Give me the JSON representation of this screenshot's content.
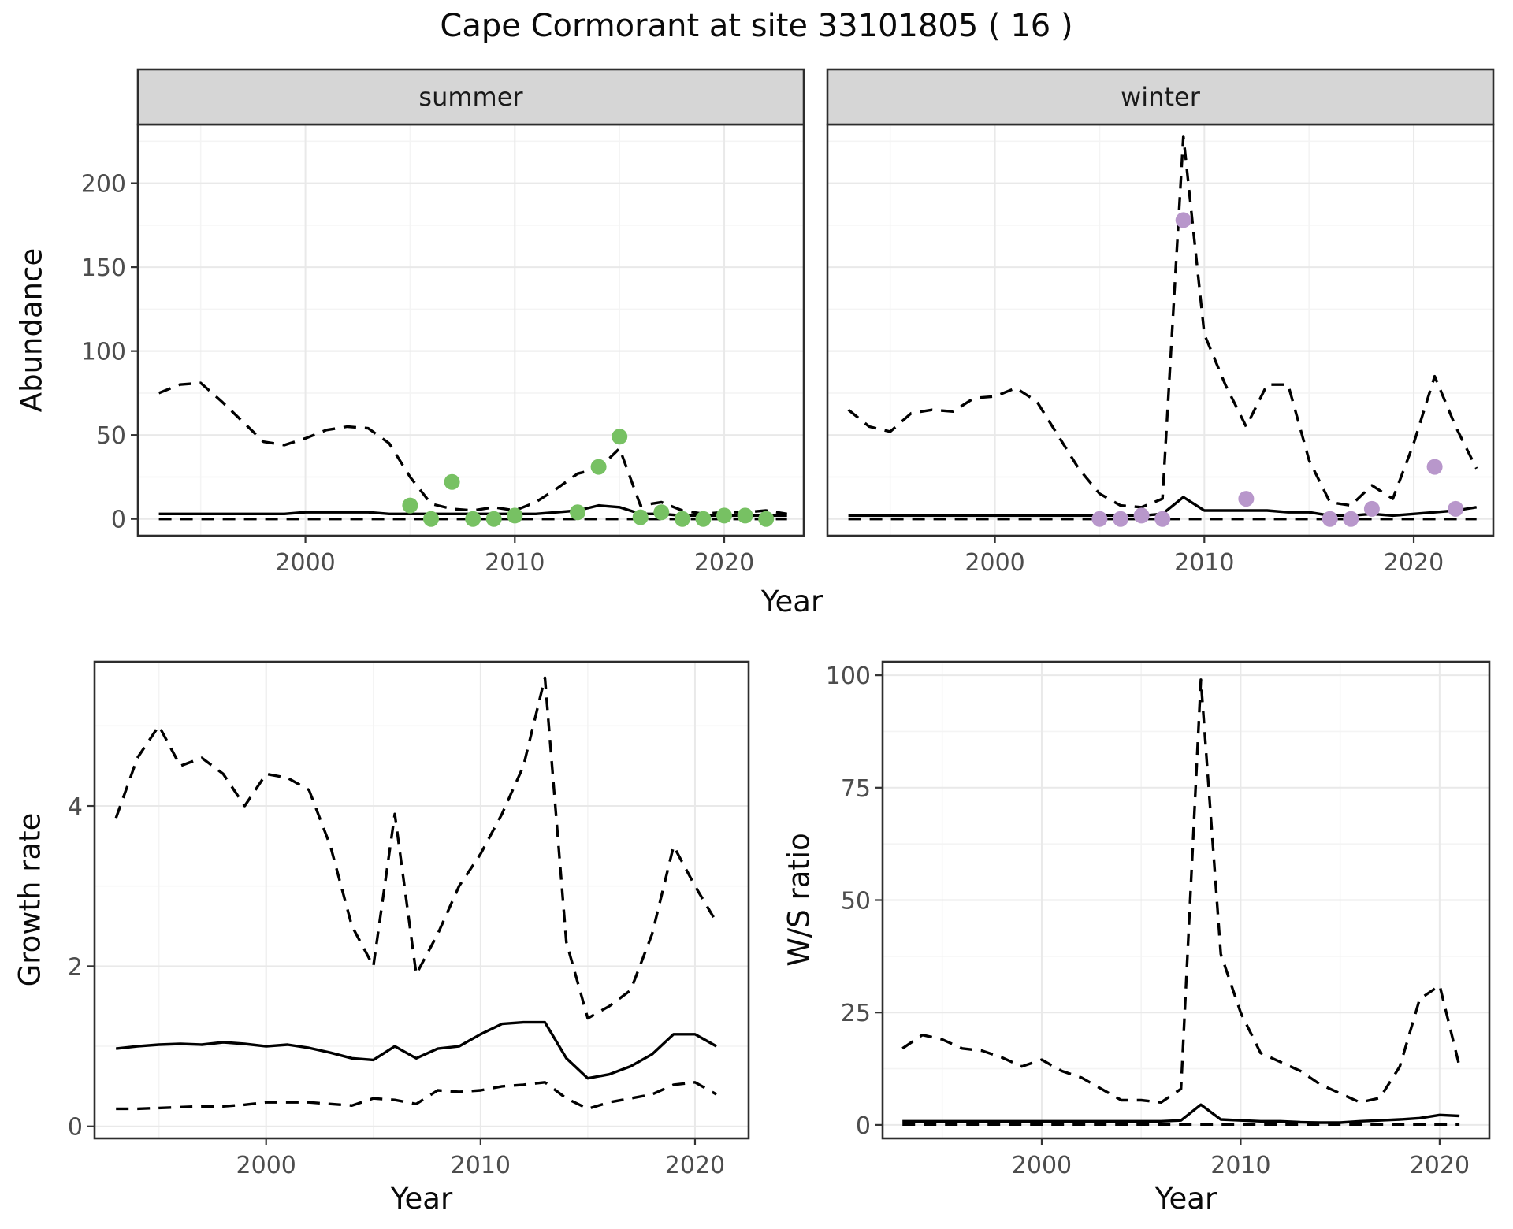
{
  "title": "Cape Cormorant at site 33101805 ( 16 )",
  "labels": {
    "abundance": "Abundance",
    "growth": "Growth rate",
    "ws": "W/S ratio",
    "year_top": "Year",
    "year_growth": "Year",
    "year_ws": "Year"
  },
  "theme": {
    "background": "#ffffff",
    "grid_major": "#e9e9e9",
    "grid_minor": "#f4f4f4",
    "panel_border": "#2d2d2d",
    "strip_bg": "#d6d6d6",
    "strip_text": "#1a1a1a",
    "tick_text": "#4d4d4d",
    "line": "#000000",
    "summer_point": "#77c163",
    "winter_point": "#b897cb"
  },
  "chart_data": [
    {
      "id": "abundance-summer",
      "type": "line",
      "facet_label": "summer",
      "xlabel": "Year",
      "ylabel": "Abundance",
      "x_domain": [
        1992,
        2023.8
      ],
      "y_domain": [
        -10,
        235
      ],
      "x_ticks": [
        2000,
        2010,
        2020
      ],
      "y_ticks": [
        0,
        50,
        100,
        150,
        200
      ],
      "x": [
        1993,
        1994,
        1995,
        1996,
        1997,
        1998,
        1999,
        2000,
        2001,
        2002,
        2003,
        2004,
        2005,
        2006,
        2007,
        2008,
        2009,
        2010,
        2011,
        2012,
        2013,
        2014,
        2015,
        2016,
        2017,
        2018,
        2019,
        2020,
        2021,
        2022,
        2023
      ],
      "series": [
        {
          "name": "upper-95ci",
          "style": "dashed",
          "values": [
            75,
            80,
            81,
            70,
            58,
            46,
            44,
            48,
            53,
            55,
            54,
            45,
            25,
            9,
            6,
            5,
            7,
            5,
            10,
            18,
            27,
            30,
            42,
            8,
            10,
            5,
            3,
            4,
            4,
            5,
            3
          ]
        },
        {
          "name": "median",
          "style": "solid",
          "values": [
            3,
            3,
            3,
            3,
            3,
            3,
            3,
            4,
            4,
            4,
            4,
            3,
            3,
            3,
            3,
            3,
            3,
            3,
            3,
            4,
            5,
            8,
            7,
            3,
            3,
            2,
            2,
            2,
            2,
            2,
            2
          ]
        },
        {
          "name": "lower-95ci",
          "style": "dashed",
          "values": [
            0,
            0,
            0,
            0,
            0,
            0,
            0,
            0,
            0,
            0,
            0,
            0,
            0,
            0,
            0,
            0,
            0,
            0,
            0,
            0,
            0,
            0,
            0,
            0,
            0,
            0,
            0,
            0,
            0,
            0,
            0
          ]
        }
      ],
      "points": {
        "name": "observed-counts-summer",
        "color": "#77c163",
        "x": [
          2005,
          2006,
          2007,
          2008,
          2009,
          2010,
          2013,
          2014,
          2015,
          2016,
          2017,
          2018,
          2019,
          2020,
          2021,
          2022
        ],
        "y": [
          8,
          0,
          22,
          0,
          0,
          2,
          4,
          31,
          49,
          1,
          4,
          0,
          0,
          2,
          2,
          0
        ]
      }
    },
    {
      "id": "abundance-winter",
      "type": "line",
      "facet_label": "winter",
      "xlabel": "Year",
      "ylabel": "Abundance",
      "x_domain": [
        1992,
        2023.8
      ],
      "y_domain": [
        -10,
        235
      ],
      "x_ticks": [
        2000,
        2010,
        2020
      ],
      "y_ticks": [
        0,
        50,
        100,
        150,
        200
      ],
      "x": [
        1993,
        1994,
        1995,
        1996,
        1997,
        1998,
        1999,
        2000,
        2001,
        2002,
        2003,
        2004,
        2005,
        2006,
        2007,
        2008,
        2009,
        2010,
        2011,
        2012,
        2013,
        2014,
        2015,
        2016,
        2017,
        2018,
        2019,
        2020,
        2021,
        2022,
        2023
      ],
      "series": [
        {
          "name": "upper-95ci",
          "style": "dashed",
          "values": [
            65,
            55,
            52,
            63,
            65,
            64,
            72,
            73,
            78,
            70,
            50,
            30,
            15,
            8,
            7,
            12,
            228,
            110,
            80,
            55,
            80,
            80,
            35,
            10,
            8,
            20,
            12,
            45,
            85,
            55,
            30
          ]
        },
        {
          "name": "median",
          "style": "solid",
          "values": [
            2,
            2,
            2,
            2,
            2,
            2,
            2,
            2,
            2,
            2,
            2,
            2,
            2,
            2,
            2,
            3,
            13,
            5,
            5,
            5,
            5,
            4,
            4,
            2,
            2,
            3,
            2,
            3,
            4,
            5,
            7
          ]
        },
        {
          "name": "lower-95ci",
          "style": "dashed",
          "values": [
            0,
            0,
            0,
            0,
            0,
            0,
            0,
            0,
            0,
            0,
            0,
            0,
            0,
            0,
            0,
            0,
            0,
            0,
            0,
            0,
            0,
            0,
            0,
            0,
            0,
            0,
            0,
            0,
            0,
            0,
            0
          ]
        }
      ],
      "points": {
        "name": "observed-counts-winter",
        "color": "#b897cb",
        "x": [
          2005,
          2006,
          2007,
          2008,
          2009,
          2012,
          2016,
          2017,
          2018,
          2021,
          2022
        ],
        "y": [
          0,
          0,
          2,
          0,
          178,
          12,
          0,
          0,
          6,
          31,
          6
        ]
      }
    },
    {
      "id": "growth-rate",
      "type": "line",
      "facet_label": null,
      "xlabel": "Year",
      "ylabel": "Growth rate",
      "x_domain": [
        1992,
        2022.5
      ],
      "y_domain": [
        -0.15,
        5.8
      ],
      "x_ticks": [
        2000,
        2010,
        2020
      ],
      "y_ticks": [
        0,
        2,
        4
      ],
      "x": [
        1993,
        1994,
        1995,
        1996,
        1997,
        1998,
        1999,
        2000,
        2001,
        2002,
        2003,
        2004,
        2005,
        2006,
        2007,
        2008,
        2009,
        2010,
        2011,
        2012,
        2013,
        2014,
        2015,
        2016,
        2017,
        2018,
        2019,
        2020,
        2021
      ],
      "series": [
        {
          "name": "upper-95ci",
          "style": "dashed",
          "values": [
            3.85,
            4.6,
            5.0,
            4.5,
            4.6,
            4.4,
            4.0,
            4.4,
            4.35,
            4.2,
            3.5,
            2.5,
            2.0,
            3.9,
            1.9,
            2.4,
            3.0,
            3.4,
            3.9,
            4.5,
            5.6,
            2.3,
            1.35,
            1.5,
            1.7,
            2.4,
            3.5,
            3.0,
            2.55
          ]
        },
        {
          "name": "median",
          "style": "solid",
          "values": [
            0.97,
            1.0,
            1.02,
            1.03,
            1.02,
            1.05,
            1.03,
            1.0,
            1.02,
            0.98,
            0.92,
            0.85,
            0.83,
            1.0,
            0.85,
            0.97,
            1.0,
            1.15,
            1.28,
            1.3,
            1.3,
            0.85,
            0.6,
            0.65,
            0.75,
            0.9,
            1.15,
            1.15,
            1.0
          ]
        },
        {
          "name": "lower-95ci",
          "style": "dashed",
          "values": [
            0.22,
            0.22,
            0.23,
            0.24,
            0.25,
            0.25,
            0.27,
            0.3,
            0.3,
            0.3,
            0.28,
            0.26,
            0.35,
            0.33,
            0.28,
            0.45,
            0.43,
            0.45,
            0.5,
            0.52,
            0.55,
            0.35,
            0.22,
            0.3,
            0.35,
            0.4,
            0.52,
            0.55,
            0.4
          ]
        }
      ],
      "points": null
    },
    {
      "id": "ws-ratio",
      "type": "line",
      "facet_label": null,
      "xlabel": "Year",
      "ylabel": "W/S ratio",
      "x_domain": [
        1992,
        2022.5
      ],
      "y_domain": [
        -3,
        103
      ],
      "x_ticks": [
        2000,
        2010,
        2020
      ],
      "y_ticks": [
        0,
        25,
        50,
        75,
        100
      ],
      "x": [
        1993,
        1994,
        1995,
        1996,
        1997,
        1998,
        1999,
        2000,
        2001,
        2002,
        2003,
        2004,
        2005,
        2006,
        2007,
        2008,
        2009,
        2010,
        2011,
        2012,
        2013,
        2014,
        2015,
        2016,
        2017,
        2018,
        2019,
        2020,
        2021
      ],
      "series": [
        {
          "name": "upper-95ci",
          "style": "dashed",
          "values": [
            17,
            20,
            19,
            17,
            16.5,
            15,
            13,
            14.5,
            12,
            10.5,
            8,
            5.5,
            5.5,
            5,
            8,
            99,
            38,
            25,
            16,
            14,
            12,
            9,
            7,
            5,
            6,
            13,
            28,
            31,
            13
          ]
        },
        {
          "name": "median",
          "style": "solid",
          "values": [
            0.8,
            0.8,
            0.8,
            0.8,
            0.8,
            0.8,
            0.8,
            0.8,
            0.8,
            0.8,
            0.8,
            0.8,
            0.8,
            0.8,
            1.0,
            4.5,
            1.2,
            1.0,
            0.8,
            0.8,
            0.6,
            0.5,
            0.5,
            0.8,
            1.0,
            1.2,
            1.5,
            2.2,
            2.0
          ]
        },
        {
          "name": "lower-95ci",
          "style": "dashed",
          "values": [
            0.1,
            0.1,
            0.1,
            0.1,
            0.1,
            0.1,
            0.1,
            0.1,
            0.1,
            0.1,
            0.1,
            0.1,
            0.1,
            0.1,
            0.1,
            0.1,
            0.1,
            0.1,
            0.1,
            0.1,
            0.1,
            0.1,
            0.1,
            0.1,
            0.1,
            0.1,
            0.1,
            0.1,
            0.1
          ]
        }
      ],
      "points": null
    }
  ]
}
